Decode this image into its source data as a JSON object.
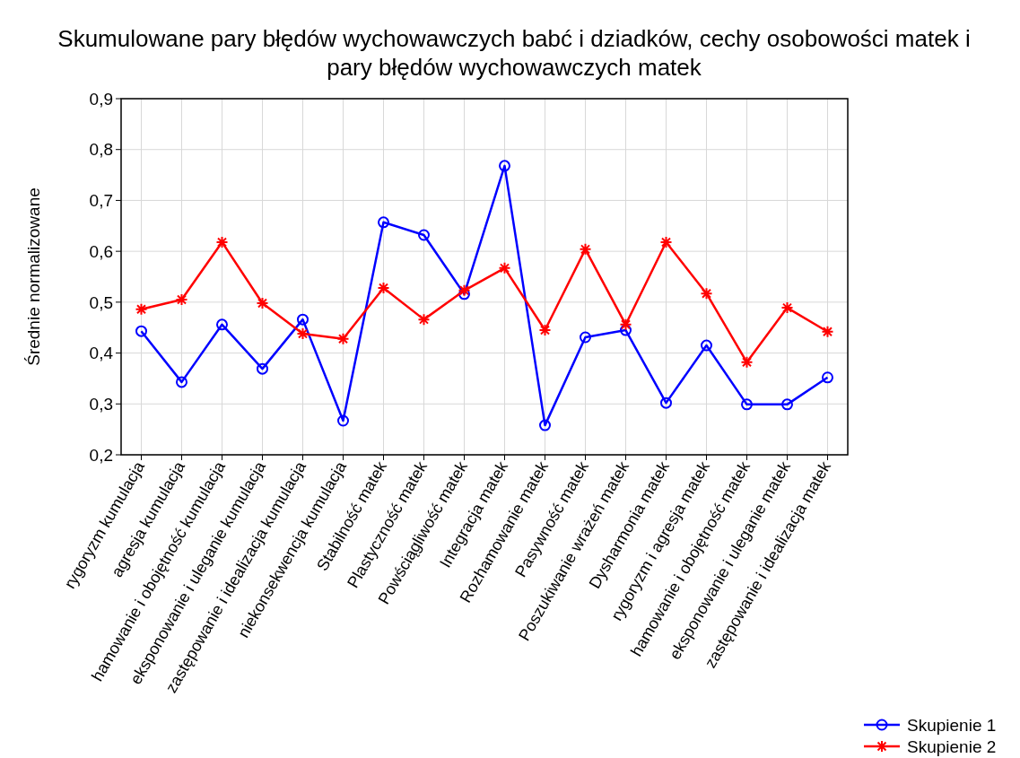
{
  "chart_data": {
    "type": "line",
    "title": "Skumulowane pary błędów wychowawczych babć i dziadków, cechy osobowości matek i pary błędów wychowawczych matek",
    "ylabel": "Średnie normalizowane",
    "categories": [
      "rygoryzm kumulacja",
      "agresja kumulacja",
      "hamowanie i obojętność kumulacja",
      "eksponowanie i uleganie kumulacja",
      "zastępowanie i idealizacja kumulacja",
      "niekonsekwencja kumulacja",
      "Stabilność matek",
      "Plastyczność matek",
      "Powściągliwość matek",
      "Integracja matek",
      "Rozhamowanie matek",
      "Pasywność matek",
      "Poszukiwanie wrażeń matek",
      "Dysharmonia matek",
      "rygoryzm i agresja matek",
      "hamowanie i obojętność matek",
      "eksponowanie i uleganie matek",
      "zastępowanie i idealizacja matek"
    ],
    "series": [
      {
        "name": "Skupienie 1",
        "color": "#0000ff",
        "marker": "circle",
        "values": [
          0.443,
          0.343,
          0.456,
          0.369,
          0.466,
          0.267,
          0.657,
          0.632,
          0.516,
          0.768,
          0.258,
          0.431,
          0.445,
          0.302,
          0.415,
          0.299,
          0.299,
          0.352
        ]
      },
      {
        "name": "Skupienie 2",
        "color": "#ff0000",
        "marker": "cross",
        "values": [
          0.486,
          0.505,
          0.618,
          0.498,
          0.438,
          0.428,
          0.528,
          0.466,
          0.523,
          0.567,
          0.445,
          0.604,
          0.456,
          0.618,
          0.517,
          0.382,
          0.489,
          0.442
        ]
      }
    ],
    "ylim": [
      0.2,
      0.9
    ],
    "yticks": [
      {
        "value": 0.2,
        "label": "0,2"
      },
      {
        "value": 0.3,
        "label": "0,3"
      },
      {
        "value": 0.4,
        "label": "0,4"
      },
      {
        "value": 0.5,
        "label": "0,5"
      },
      {
        "value": 0.6,
        "label": "0,6"
      },
      {
        "value": 0.7,
        "label": "0,7"
      },
      {
        "value": 0.8,
        "label": "0,8"
      },
      {
        "value": 0.9,
        "label": "0,9"
      }
    ],
    "grid": true,
    "legend": "bottom right",
    "line_style": "solid"
  }
}
